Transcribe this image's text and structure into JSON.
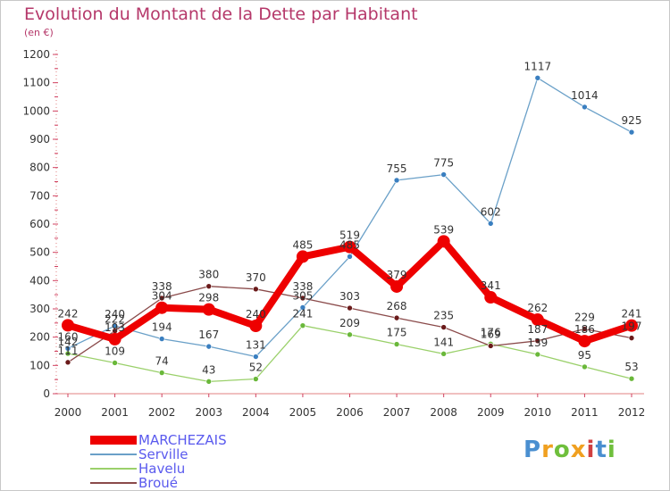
{
  "header": {
    "title": "Evolution du Montant de la Dette par Habitant",
    "subtitle": "(en €)"
  },
  "logo": {
    "text": "Proxiti"
  },
  "chart_data": {
    "type": "line",
    "title": "Evolution du Montant de la Dette par Habitant",
    "subtitle": "(en €)",
    "x": [
      "2000",
      "2001",
      "2002",
      "2003",
      "2004",
      "2005",
      "2006",
      "2007",
      "2008",
      "2009",
      "2010",
      "2011",
      "2012"
    ],
    "ylim": [
      0,
      1200
    ],
    "yticks": [
      0,
      100,
      200,
      300,
      400,
      500,
      600,
      700,
      800,
      900,
      1000,
      1100,
      1200
    ],
    "grid": false,
    "legend_position": "bottom-left",
    "series": [
      {
        "name": "Serville",
        "color": "#6aa0c8",
        "marker": "#3a7fc0",
        "values": [
          160,
          240,
          194,
          167,
          131,
          305,
          485,
          755,
          775,
          602,
          1117,
          1014,
          925
        ],
        "labels": [
          "160",
          "240",
          "194",
          "167",
          "131",
          "305",
          "485",
          "755",
          "775",
          "602",
          "1117",
          "1014",
          "925"
        ]
      },
      {
        "name": "Havelu",
        "color": "#9ad06a",
        "marker": "#6ab83a",
        "values": [
          142,
          109,
          74,
          43,
          52,
          241,
          209,
          175,
          141,
          176,
          139,
          95,
          53
        ],
        "labels": [
          "142",
          "109",
          "74",
          "43",
          "52",
          "241",
          "209",
          "175",
          "141",
          "176",
          "139",
          "95",
          "53"
        ]
      },
      {
        "name": "Broué",
        "color": "#8a4a4a",
        "marker": "#6a1a1a",
        "values": [
          111,
          222,
          338,
          380,
          370,
          338,
          303,
          268,
          235,
          169,
          187,
          229,
          197
        ],
        "labels": [
          "111",
          "222",
          "338",
          "380",
          "370",
          "338",
          "303",
          "268",
          "235",
          "169",
          "187",
          "229",
          "197"
        ]
      },
      {
        "name": "MARCHEZAIS",
        "color": "#ee0000",
        "marker": "#ee0000",
        "values": [
          242,
          193,
          304,
          298,
          240,
          485,
          519,
          379,
          539,
          341,
          262,
          186,
          241
        ],
        "labels": [
          "242",
          "193",
          "304",
          "298",
          "240",
          "485",
          "519",
          "379",
          "539",
          "341",
          "262",
          "186",
          "241"
        ]
      }
    ]
  }
}
